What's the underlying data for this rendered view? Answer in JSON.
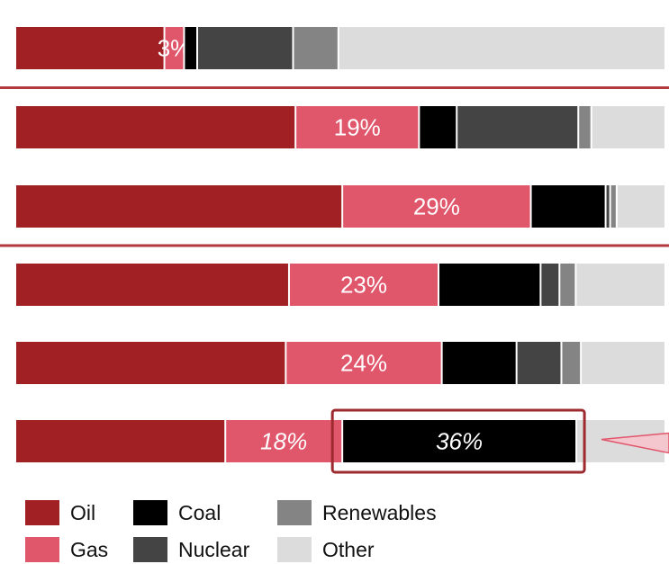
{
  "chart_data": {
    "type": "bar",
    "orientation": "horizontal-stacked-100",
    "series": [
      {
        "name": "Oil",
        "color": "#a02024"
      },
      {
        "name": "Gas",
        "color": "#e0566b"
      },
      {
        "name": "Coal",
        "color": "#000000"
      },
      {
        "name": "Nuclear",
        "color": "#444444"
      },
      {
        "name": "Renewables",
        "color": "#848484"
      },
      {
        "name": "Other",
        "color": "#dcdcdc"
      }
    ],
    "rows": [
      {
        "values": [
          22.7,
          3,
          2,
          14.6,
          6.9,
          49.8
        ],
        "labels": [
          "",
          "3%",
          "",
          "",
          "",
          ""
        ],
        "italic": false
      },
      {
        "values": [
          43.1,
          19,
          5.8,
          18.7,
          2,
          11.4
        ],
        "labels": [
          "",
          "19%",
          "",
          "",
          "",
          ""
        ],
        "italic": false
      },
      {
        "values": [
          50.3,
          29,
          11.5,
          0.7,
          1,
          7.5
        ],
        "labels": [
          "",
          "29%",
          "",
          "",
          "",
          ""
        ],
        "italic": false
      },
      {
        "values": [
          42.1,
          23,
          15.7,
          2.9,
          2.5,
          13.8
        ],
        "labels": [
          "",
          "23%",
          "",
          "",
          "",
          ""
        ],
        "italic": false
      },
      {
        "values": [
          41.6,
          24,
          11.5,
          6.9,
          3.0,
          13
        ],
        "labels": [
          "",
          "24%",
          "",
          "",
          "",
          ""
        ],
        "italic": false
      },
      {
        "values": [
          32.3,
          18,
          36,
          0,
          0,
          13.7
        ],
        "labels": [
          "",
          "18%",
          "36%",
          "",
          "",
          ""
        ],
        "italic": true
      }
    ],
    "separators_after_rows": [
      0,
      2
    ],
    "highlight": {
      "row": 5,
      "series": "Coal"
    },
    "title": "",
    "xlabel": "",
    "ylabel": ""
  },
  "legend": [
    {
      "name": "Oil",
      "color": "#a02024"
    },
    {
      "name": "Coal",
      "color": "#000000"
    },
    {
      "name": "Renewables",
      "color": "#848484"
    },
    {
      "name": "Gas",
      "color": "#e0566b"
    },
    {
      "name": "Nuclear",
      "color": "#444444"
    },
    {
      "name": "Other",
      "color": "#dcdcdc"
    }
  ],
  "colors": {
    "accent": "#a02024",
    "separator": "#b23a3f"
  }
}
